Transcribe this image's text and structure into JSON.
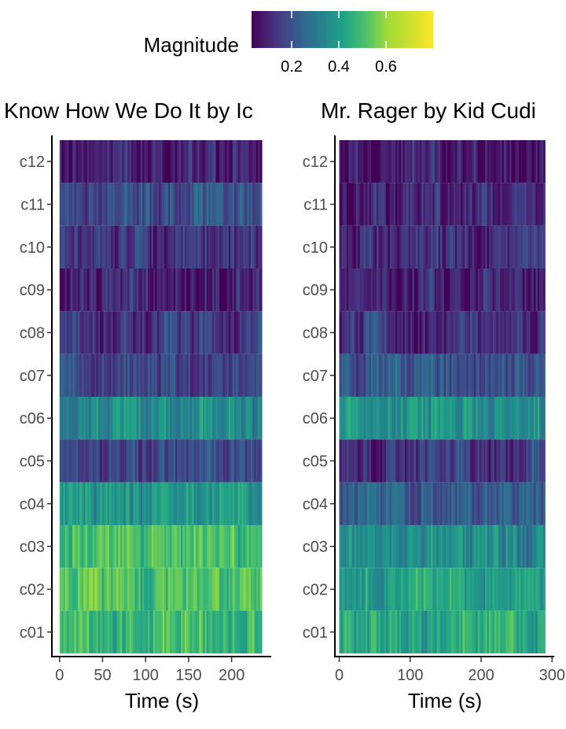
{
  "chart_data": {
    "type": "heatmap",
    "legend": {
      "title": "Magnitude",
      "position": "top",
      "tick_labels": [
        "0.2",
        "0.4",
        "0.6"
      ],
      "ticks": [
        0.2,
        0.4,
        0.6
      ],
      "range": [
        0.03,
        0.8
      ],
      "colormap": "viridis"
    },
    "rows": [
      "c12",
      "c11",
      "c10",
      "c09",
      "c08",
      "c07",
      "c06",
      "c05",
      "c04",
      "c03",
      "c02",
      "c01"
    ],
    "panels": [
      {
        "title": "Know How We Do It by Ic",
        "xlabel": "Time (s)",
        "xlim": [
          -8,
          246
        ],
        "xticks": [
          0,
          50,
          100,
          150,
          200
        ],
        "duration": 235,
        "row_levels": {
          "c01": 0.52,
          "c02": 0.58,
          "c03": 0.55,
          "c04": 0.42,
          "c05": 0.18,
          "c06": 0.38,
          "c07": 0.18,
          "c08": 0.15,
          "c09": 0.08,
          "c10": 0.12,
          "c11": 0.2,
          "c12": 0.08
        }
      },
      {
        "title": "Mr. Rager by Kid Cudi",
        "xlabel": "Time (s)",
        "xlim": [
          -5,
          303
        ],
        "xticks": [
          0,
          100,
          200,
          300
        ],
        "duration": 290,
        "row_levels": {
          "c01": 0.5,
          "c02": 0.48,
          "c03": 0.4,
          "c04": 0.25,
          "c05": 0.14,
          "c06": 0.42,
          "c07": 0.22,
          "c08": 0.12,
          "c09": 0.1,
          "c10": 0.1,
          "c11": 0.1,
          "c12": 0.08
        }
      }
    ]
  }
}
